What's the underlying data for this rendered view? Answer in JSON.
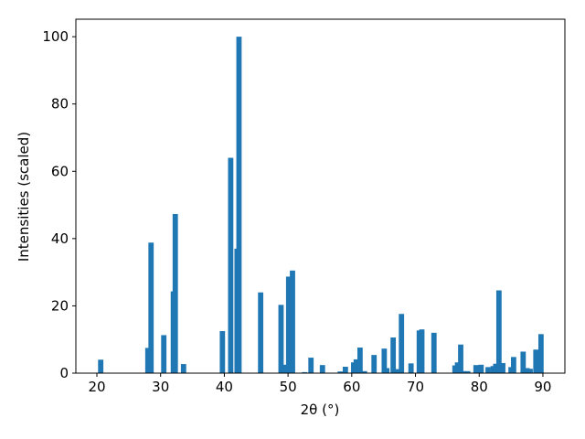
{
  "chart_data": {
    "type": "bar",
    "xlabel": "2θ (°)",
    "ylabel": "Intensities (scaled)",
    "color": "#1f77b4",
    "x": [
      20.6,
      28.0,
      28.5,
      30.5,
      32.0,
      32.3,
      33.6,
      39.7,
      41.0,
      42.0,
      42.3,
      45.7,
      48.9,
      49.6,
      50.1,
      50.7,
      52.6,
      53.6,
      55.4,
      58.2,
      59.0,
      60.3,
      60.7,
      61.3,
      62.0,
      63.5,
      65.1,
      65.5,
      66.5,
      67.0,
      67.8,
      69.3,
      70.6,
      71.0,
      72.9,
      76.2,
      76.6,
      77.1,
      77.5,
      78.2,
      79.5,
      80.3,
      81.4,
      82.2,
      82.6,
      83.1,
      83.7,
      85.0,
      85.4,
      86.9,
      87.5,
      88.0,
      88.9,
      89.7
    ],
    "values": [
      4,
      7.5,
      38.8,
      11.3,
      24.3,
      47.3,
      2.7,
      12.5,
      64,
      37,
      100,
      24,
      20.3,
      2.5,
      28.7,
      30.5,
      0.3,
      4.6,
      2.4,
      0.5,
      1.9,
      3.2,
      4.1,
      7.6,
      0.6,
      5.4,
      7.3,
      1.5,
      10.6,
      1.2,
      17.6,
      2.9,
      12.7,
      13,
      12,
      2.3,
      3.2,
      8.5,
      0.6,
      0.6,
      2.4,
      2.5,
      1.8,
      2.1,
      2.8,
      24.6,
      3,
      1.8,
      4.8,
      6.4,
      1.5,
      1.3,
      7,
      11.6
    ],
    "xlim": [
      16.7,
      93.45
    ],
    "ylim": [
      0,
      105.2
    ],
    "xticks": [
      20,
      30,
      40,
      50,
      60,
      70,
      80,
      90
    ],
    "yticks": [
      0,
      20,
      40,
      60,
      80,
      100
    ]
  }
}
